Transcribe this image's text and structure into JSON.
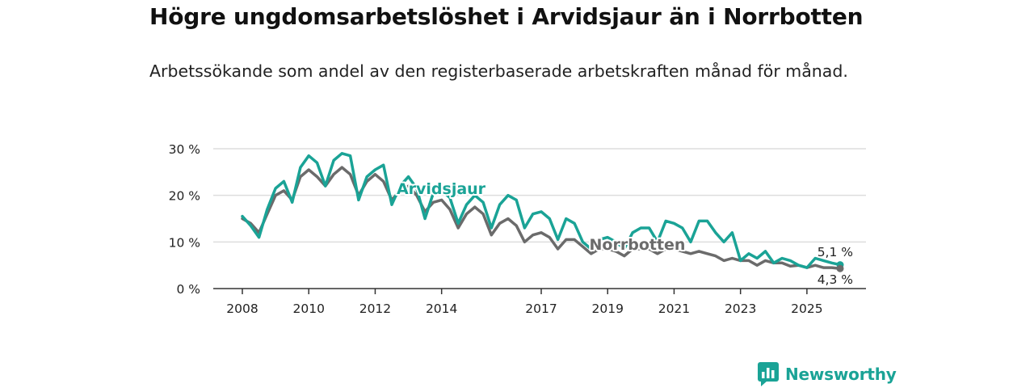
{
  "header": {
    "title": "Högre ungdomsarbetslöshet i Arvidsjaur än i Norrbotten",
    "subtitle": "Arbetssökande som andel av den registerbaserade arbetskraften månad för månad."
  },
  "brand": {
    "name": "Newsworthy"
  },
  "colors": {
    "arvidsjaur": "#1aa396",
    "norrbotten": "#6b6b6b",
    "grid": "#dddddd",
    "axis": "#333333"
  },
  "chart_data": {
    "type": "line",
    "x_ticks": [
      "2008",
      "2010",
      "2012",
      "2014",
      "2017",
      "2019",
      "2021",
      "2023",
      "2025"
    ],
    "y_ticks": [
      "0 %",
      "10 %",
      "20 %",
      "30 %"
    ],
    "ylim": [
      0,
      30
    ],
    "xlim": [
      2008,
      2026.5
    ],
    "series": [
      {
        "name": "Arvidsjaur",
        "label": "Arvidsjaur",
        "end_label": "5,1 %",
        "x": [
          2008.0,
          2008.25,
          2008.5,
          2008.75,
          2009.0,
          2009.25,
          2009.5,
          2009.75,
          2010.0,
          2010.25,
          2010.5,
          2010.75,
          2011.0,
          2011.25,
          2011.5,
          2011.75,
          2012.0,
          2012.25,
          2012.5,
          2012.75,
          2013.0,
          2013.25,
          2013.5,
          2013.75,
          2014.0,
          2014.25,
          2014.5,
          2014.75,
          2015.0,
          2015.25,
          2015.5,
          2015.75,
          2016.0,
          2016.25,
          2016.5,
          2016.75,
          2017.0,
          2017.25,
          2017.5,
          2017.75,
          2018.0,
          2018.25,
          2018.5,
          2018.75,
          2019.0,
          2019.25,
          2019.5,
          2019.75,
          2020.0,
          2020.25,
          2020.5,
          2020.75,
          2021.0,
          2021.25,
          2021.5,
          2021.75,
          2022.0,
          2022.25,
          2022.5,
          2022.75,
          2023.0,
          2023.25,
          2023.5,
          2023.75,
          2024.0,
          2024.25,
          2024.5,
          2024.75,
          2025.0,
          2025.25,
          2025.5,
          2025.75,
          2026.0
        ],
        "values": [
          15.5,
          13.5,
          11.0,
          17.0,
          21.5,
          23.0,
          18.5,
          26.0,
          28.5,
          27.0,
          22.0,
          27.5,
          29.0,
          28.5,
          19.0,
          24.0,
          25.5,
          26.5,
          18.0,
          22.0,
          24.0,
          21.5,
          15.0,
          20.5,
          21.0,
          19.5,
          14.0,
          18.0,
          20.0,
          18.5,
          13.0,
          18.0,
          20.0,
          19.0,
          13.0,
          16.0,
          16.5,
          15.0,
          10.5,
          15.0,
          14.0,
          10.0,
          8.5,
          10.5,
          11.0,
          10.0,
          8.5,
          12.0,
          13.0,
          13.0,
          10.0,
          14.5,
          14.0,
          13.0,
          10.0,
          14.5,
          14.5,
          12.0,
          10.0,
          12.0,
          6.0,
          7.5,
          6.5,
          8.0,
          5.5,
          6.5,
          6.0,
          5.0,
          4.5,
          6.5,
          6.0,
          5.5,
          5.1
        ]
      },
      {
        "name": "Norrbotten",
        "label": "Norrbotten",
        "end_label": "4,3 %",
        "x": [
          2008.0,
          2008.25,
          2008.5,
          2008.75,
          2009.0,
          2009.25,
          2009.5,
          2009.75,
          2010.0,
          2010.25,
          2010.5,
          2010.75,
          2011.0,
          2011.25,
          2011.5,
          2011.75,
          2012.0,
          2012.25,
          2012.5,
          2012.75,
          2013.0,
          2013.25,
          2013.5,
          2013.75,
          2014.0,
          2014.25,
          2014.5,
          2014.75,
          2015.0,
          2015.25,
          2015.5,
          2015.75,
          2016.0,
          2016.25,
          2016.5,
          2016.75,
          2017.0,
          2017.25,
          2017.5,
          2017.75,
          2018.0,
          2018.25,
          2018.5,
          2018.75,
          2019.0,
          2019.25,
          2019.5,
          2019.75,
          2020.0,
          2020.25,
          2020.5,
          2020.75,
          2021.0,
          2021.25,
          2021.5,
          2021.75,
          2022.0,
          2022.25,
          2022.5,
          2022.75,
          2023.0,
          2023.25,
          2023.5,
          2023.75,
          2024.0,
          2024.25,
          2024.5,
          2024.75,
          2025.0,
          2025.25,
          2025.5,
          2025.75,
          2026.0
        ],
        "values": [
          15.0,
          14.0,
          12.0,
          16.0,
          20.0,
          21.0,
          19.0,
          24.0,
          25.5,
          24.0,
          22.0,
          24.5,
          26.0,
          24.5,
          20.0,
          23.0,
          24.5,
          23.0,
          19.0,
          21.0,
          22.0,
          20.0,
          16.5,
          18.5,
          19.0,
          17.0,
          13.0,
          16.0,
          17.5,
          16.0,
          11.5,
          14.0,
          15.0,
          13.5,
          10.0,
          11.5,
          12.0,
          11.0,
          8.5,
          10.5,
          10.5,
          9.0,
          7.5,
          8.5,
          8.5,
          8.0,
          7.0,
          8.5,
          8.5,
          8.5,
          7.5,
          8.5,
          8.5,
          8.0,
          7.5,
          8.0,
          7.5,
          7.0,
          6.0,
          6.5,
          6.0,
          6.0,
          5.0,
          6.0,
          5.5,
          5.5,
          4.8,
          5.0,
          4.5,
          5.0,
          4.5,
          4.5,
          4.3
        ]
      }
    ]
  }
}
